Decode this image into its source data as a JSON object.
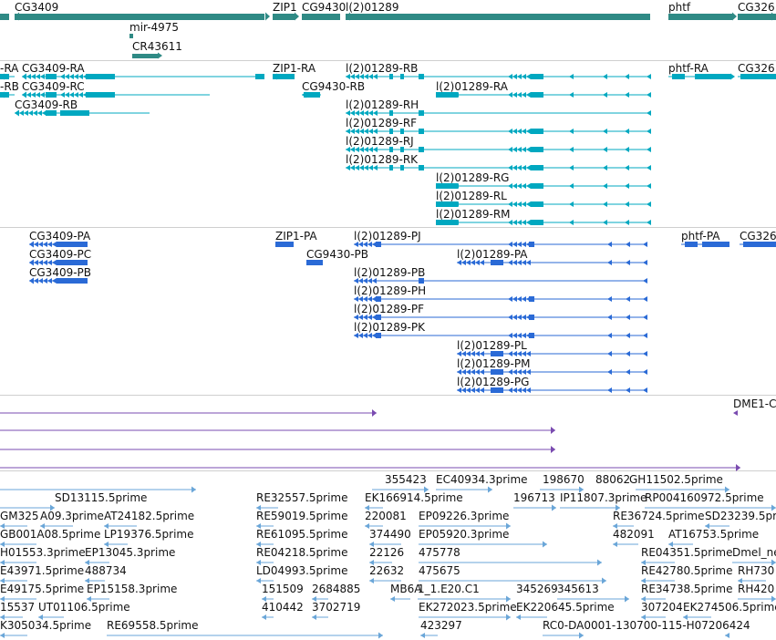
{
  "colors": {
    "gene": "#2f8a85",
    "transcript": "#00a8c0",
    "protein": "#2a6ad6",
    "purple": "#7a4bb0",
    "est": "#6aa6d8",
    "separator": "#cfcfcf"
  },
  "tracks": {
    "genes": {
      "labels": [
        "CG3409",
        "ZIP1",
        "CG9430",
        "l(2)01289",
        "phtf",
        "CG326",
        "mir-4975",
        "CR43611"
      ]
    },
    "transcripts": {
      "labels": [
        "-RA",
        "-RB",
        "CG3409-RA",
        "CG3409-RC",
        "CG3409-RB",
        "ZIP1-RA",
        "CG9430-RB",
        "l(2)01289-RB",
        "l(2)01289-RA",
        "l(2)01289-RH",
        "l(2)01289-RF",
        "l(2)01289-RJ",
        "l(2)01289-RK",
        "l(2)01289-RG",
        "l(2)01289-RL",
        "l(2)01289-RM",
        "phtf-RA",
        "CG326"
      ]
    },
    "proteins": {
      "labels": [
        "CG3409-PA",
        "CG3409-PC",
        "CG3409-PB",
        "ZIP1-PA",
        "CG9430-PB",
        "l(2)01289-PJ",
        "l(2)01289-PA",
        "l(2)01289-PB",
        "l(2)01289-PH",
        "l(2)01289-PF",
        "l(2)01289-PK",
        "l(2)01289-PL",
        "l(2)01289-PM",
        "l(2)01289-PG",
        "phtf-PA",
        "CG326"
      ]
    },
    "purple": {
      "labels": [
        "DME1-C"
      ]
    },
    "ests": {
      "labels": [
        "355423",
        "EC40934.3prime",
        "198670",
        "88062",
        "GH11502.5prime",
        "SD13115.5prime",
        "RE32557.5prime",
        "EK166914.5prime",
        "196713",
        "IP11807.3prime",
        "RP004160972.5prime",
        "GM325",
        "A09.3prime",
        "AT24182.5prime",
        "RE59019.5prime",
        "220081",
        "EP09226.3prime",
        "RE36724.5prime",
        "SD23239.5pr",
        "GB001A08.5prime",
        "LP19376.5prime",
        "RE61095.5prime",
        "374490",
        "EP05920.3prime",
        "482091",
        "AT16753.5prime",
        "H01553.3prime",
        "EP13045.3prime",
        "RE04218.5prime",
        "22126",
        "475778",
        "RE04351.5prime",
        "Dmel_ne",
        "E43971.5prime",
        "488734",
        "LD04993.5prime",
        "22632",
        "475675",
        "RE42780.5prime",
        "RH730",
        "E49175.5prime",
        "EP15158.3prime",
        "151509",
        "2684885",
        "MB6A",
        "1_1.E20.C1",
        "345269",
        "345613",
        "RE34738.5prime",
        "RH420",
        "15537",
        "UT01106.5prime",
        "410442",
        "3702719",
        "EK272023.5prime",
        "EK220645.5prime",
        "307204",
        "EK274506.5prime",
        "K305034.5prime",
        "RE69558.5prime",
        "423297",
        "RC0-DA0001-130700-115-H07206424"
      ]
    }
  }
}
